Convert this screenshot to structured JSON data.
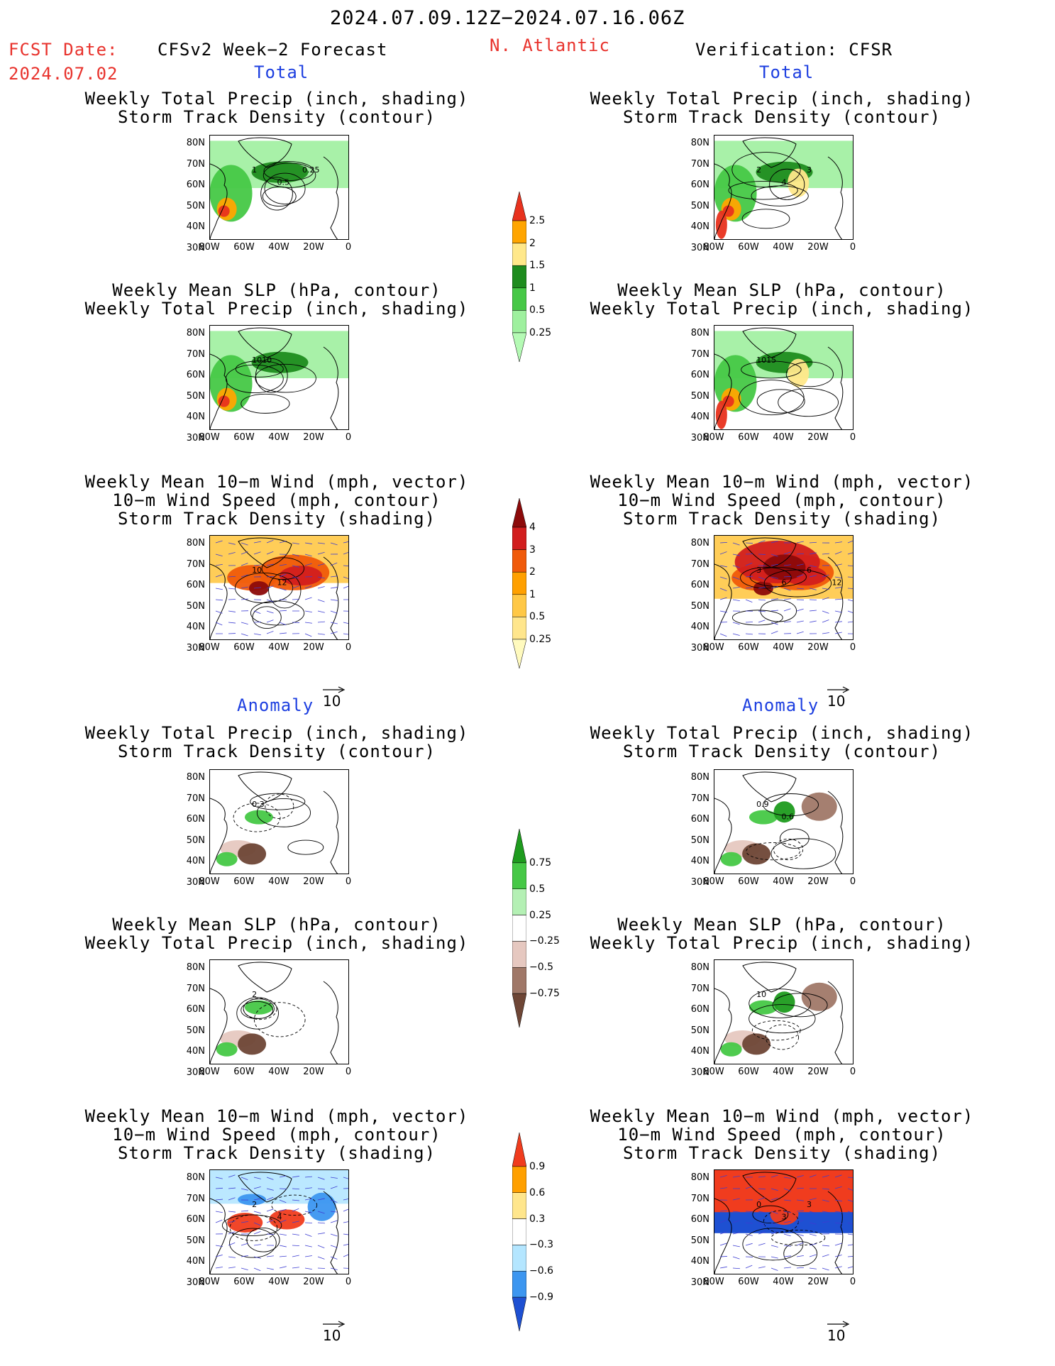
{
  "header": {
    "date_range": "2024.07.09.12Z−2024.07.16.06Z",
    "fcst_label": "FCST Date:",
    "fcst_date": "2024.07.02",
    "left_model": "CFSv2 Week−2 Forecast",
    "region": "N. Atlantic",
    "right_model": "Verification: CFSR"
  },
  "sections": {
    "total": "Total",
    "anomaly": "Anomaly"
  },
  "panel_titles": {
    "precip_track": [
      "Weekly Total Precip (inch, shading)",
      "Storm Track Density (contour)"
    ],
    "slp_precip": [
      "Weekly Mean SLP (hPa, contour)",
      "Weekly Total Precip (inch, shading)"
    ],
    "wind_track": [
      "Weekly Mean 10−m Wind (mph, vector)",
      "10−m Wind Speed (mph, contour)",
      "Storm Track Density (shading)"
    ]
  },
  "axes": {
    "lat_labels": [
      "80N",
      "70N",
      "60N",
      "50N",
      "40N",
      "30N"
    ],
    "lon_labels": [
      "80W",
      "60W",
      "40W",
      "20W",
      "0"
    ]
  },
  "vector_ref": "10",
  "colorbars": {
    "precip_total": {
      "labels": [
        "2.5",
        "2",
        "1.5",
        "1",
        "0.5",
        "0.25"
      ],
      "colors": [
        "#e8321e",
        "#ffa500",
        "#ffe88a",
        "#1e8c1e",
        "#46c846",
        "#9ef09e",
        "#b4fab4"
      ]
    },
    "track_total": {
      "labels": [
        "4",
        "3",
        "2",
        "1",
        "0.5",
        "0.25"
      ],
      "colors": [
        "#8c0a0a",
        "#d21e1e",
        "#f05a0a",
        "#ffa000",
        "#ffc846",
        "#ffe68c",
        "#fffabe"
      ]
    },
    "precip_anom": {
      "labels": [
        "0.75",
        "0.5",
        "0.25",
        "−0.25",
        "−0.5",
        "−0.75"
      ],
      "colors": [
        "#1e9b1e",
        "#46c846",
        "#b4f0b4",
        "#ffffff",
        "#e6c8c0",
        "#a07868",
        "#6e4636"
      ]
    },
    "track_anom": {
      "labels": [
        "0.9",
        "0.6",
        "0.3",
        "−0.3",
        "−0.6",
        "−0.9"
      ],
      "colors": [
        "#f03c1e",
        "#ffa000",
        "#ffe68c",
        "#ffffff",
        "#b4e6ff",
        "#3c96f0",
        "#1e50d2"
      ]
    }
  },
  "contour_labels": {
    "l_pt": [
      "1",
      "0.5",
      "0.25"
    ],
    "r_pt": [
      "2",
      "4",
      "3"
    ],
    "l_slp": [
      "1010"
    ],
    "r_slp": [
      "1015"
    ],
    "l_wt": [
      "10",
      "12"
    ],
    "r_wt": [
      "3",
      "6",
      "6",
      "12",
      "9"
    ],
    "l_pa": [
      "0.3"
    ],
    "r_pa": [
      "0.9",
      "0.6"
    ],
    "l_sa": [
      "2"
    ],
    "r_sa": [
      "10"
    ],
    "l_wa": [
      "2",
      "4"
    ],
    "r_wa": [
      "0",
      "3",
      "3"
    ]
  }
}
